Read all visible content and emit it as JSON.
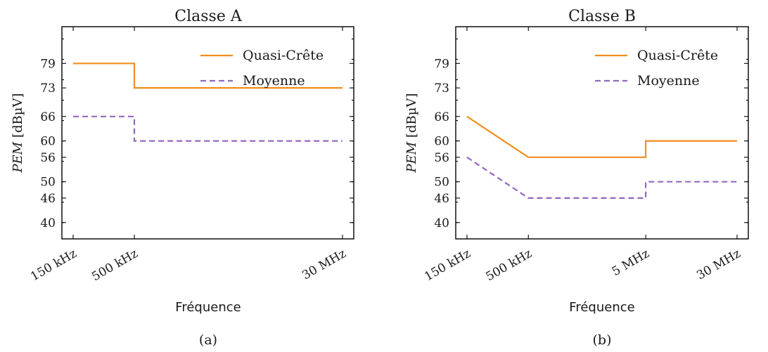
{
  "chart_data": [
    {
      "type": "line",
      "title": "Classe A",
      "caption": "(a)",
      "xlabel": "Fréquence",
      "ylabel_italic": "PEM",
      "ylabel_unit": "[dBµV]",
      "x_scale": "log",
      "x_ticks": [
        {
          "value": 0.15,
          "label": "150 kHz"
        },
        {
          "value": 0.5,
          "label": "500 kHz"
        },
        {
          "value": 30,
          "label": "30 MHz"
        }
      ],
      "y_ticks": [
        40,
        46,
        50,
        56,
        60,
        66,
        73,
        79
      ],
      "ylim": [
        36,
        88
      ],
      "xlim": [
        0.15,
        30
      ],
      "grid": false,
      "legend_position": "top-right",
      "series": [
        {
          "name": "Quasi-Crête",
          "color": "#f28e1c",
          "style": "solid",
          "points": [
            [
              0.15,
              79
            ],
            [
              0.5,
              79
            ],
            [
              0.5,
              73
            ],
            [
              30,
              73
            ]
          ]
        },
        {
          "name": "Moyenne",
          "color": "#9467bd",
          "style": "dashed",
          "points": [
            [
              0.15,
              66
            ],
            [
              0.5,
              66
            ],
            [
              0.5,
              60
            ],
            [
              30,
              60
            ]
          ]
        }
      ]
    },
    {
      "type": "line",
      "title": "Classe B",
      "caption": "(b)",
      "xlabel": "Fréquence",
      "ylabel_italic": "PEM",
      "ylabel_unit": "[dBµV]",
      "x_scale": "log",
      "x_ticks": [
        {
          "value": 0.15,
          "label": "150 kHz"
        },
        {
          "value": 0.5,
          "label": "500 kHz"
        },
        {
          "value": 5,
          "label": "5 MHz"
        },
        {
          "value": 30,
          "label": "30 MHz"
        }
      ],
      "y_ticks": [
        40,
        46,
        50,
        56,
        60,
        66,
        73,
        79
      ],
      "ylim": [
        36,
        88
      ],
      "xlim": [
        0.15,
        30
      ],
      "grid": false,
      "legend_position": "top-right",
      "series": [
        {
          "name": "Quasi-Crête",
          "color": "#f28e1c",
          "style": "solid",
          "points": [
            [
              0.15,
              66
            ],
            [
              0.5,
              56
            ],
            [
              5,
              56
            ],
            [
              5,
              60
            ],
            [
              30,
              60
            ]
          ]
        },
        {
          "name": "Moyenne",
          "color": "#9467bd",
          "style": "dashed",
          "points": [
            [
              0.15,
              56
            ],
            [
              0.5,
              46
            ],
            [
              5,
              46
            ],
            [
              5,
              50
            ],
            [
              30,
              50
            ]
          ]
        }
      ]
    }
  ]
}
